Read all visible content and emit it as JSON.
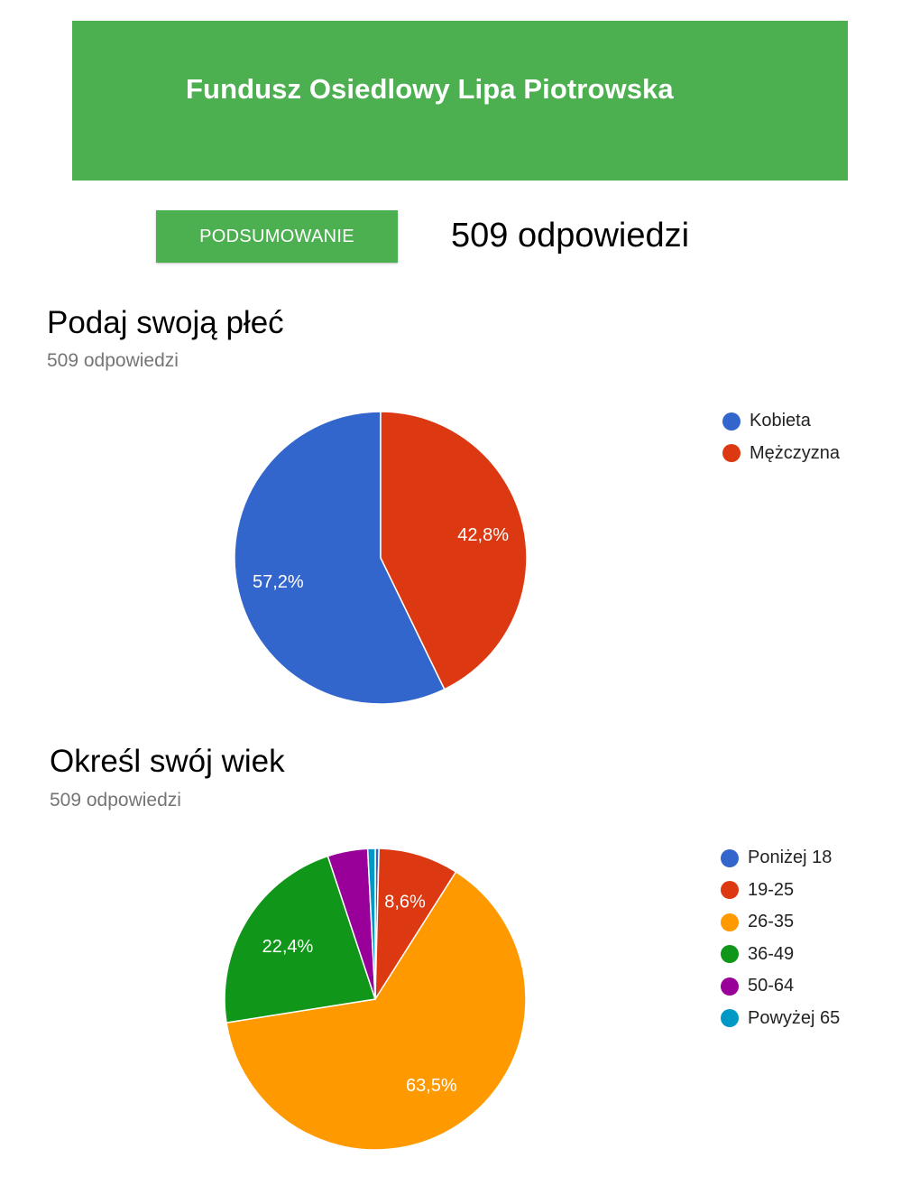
{
  "header": {
    "title": "Fundusz Osiedlowy Lipa Piotrowska"
  },
  "summary_tab": {
    "label": "PODSUMOWANIE"
  },
  "total_responses": "509 odpowiedzi",
  "questions": [
    {
      "title": "Podaj swoją płeć",
      "responses": "509 odpowiedzi"
    },
    {
      "title": "Określ swój wiek",
      "responses": "509 odpowiedzi"
    }
  ],
  "chart_data": [
    {
      "type": "pie",
      "categories": [
        "Kobieta",
        "Mężczyzna"
      ],
      "values": [
        57.2,
        42.8
      ],
      "labels": [
        "57,2%",
        "42,8%"
      ],
      "colors": [
        "#3366cc",
        "#dc3912"
      ],
      "legend": "right"
    },
    {
      "type": "pie",
      "categories": [
        "Poniżej 18",
        "19-25",
        "26-35",
        "36-49",
        "50-64",
        "Powyżej 65"
      ],
      "values": [
        0.4,
        8.6,
        63.5,
        22.4,
        4.3,
        0.8
      ],
      "labels": [
        "",
        "8,6%",
        "63,5%",
        "22,4%",
        "",
        ""
      ],
      "colors": [
        "#3366cc",
        "#dc3912",
        "#ff9900",
        "#109618",
        "#990099",
        "#0099c6"
      ],
      "legend": "right"
    }
  ]
}
